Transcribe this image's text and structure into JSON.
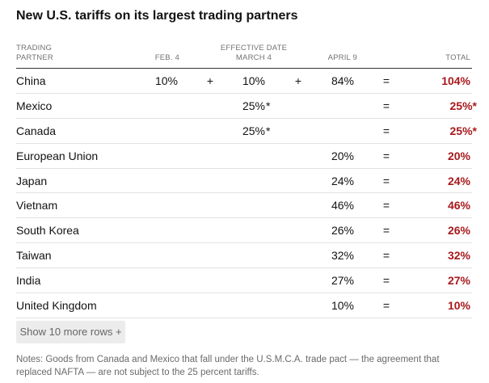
{
  "title": "New U.S. tariffs on its largest trading partners",
  "headers": {
    "partner": "TRADING PARTNER",
    "feb": "FEB. 4",
    "effective": "EFFECTIVE DATE",
    "march": "MARCH 4",
    "april": "APRIL 9",
    "total": "TOTAL"
  },
  "rows": [
    {
      "country": "China",
      "feb": "10%",
      "plus1": "+",
      "march": "10%",
      "march_note": "",
      "plus2": "+",
      "april": "84%",
      "eq": "=",
      "total": "104%",
      "total_note": ""
    },
    {
      "country": "Mexico",
      "feb": "",
      "plus1": "",
      "march": "25%",
      "march_note": "*",
      "plus2": "",
      "april": "",
      "eq": "=",
      "total": "25%",
      "total_note": "*"
    },
    {
      "country": "Canada",
      "feb": "",
      "plus1": "",
      "march": "25%",
      "march_note": "*",
      "plus2": "",
      "april": "",
      "eq": "=",
      "total": "25%",
      "total_note": "*"
    },
    {
      "country": "European Union",
      "feb": "",
      "plus1": "",
      "march": "",
      "march_note": "",
      "plus2": "",
      "april": "20%",
      "eq": "=",
      "total": "20%",
      "total_note": ""
    },
    {
      "country": "Japan",
      "feb": "",
      "plus1": "",
      "march": "",
      "march_note": "",
      "plus2": "",
      "april": "24%",
      "eq": "=",
      "total": "24%",
      "total_note": ""
    },
    {
      "country": "Vietnam",
      "feb": "",
      "plus1": "",
      "march": "",
      "march_note": "",
      "plus2": "",
      "april": "46%",
      "eq": "=",
      "total": "46%",
      "total_note": ""
    },
    {
      "country": "South Korea",
      "feb": "",
      "plus1": "",
      "march": "",
      "march_note": "",
      "plus2": "",
      "april": "26%",
      "eq": "=",
      "total": "26%",
      "total_note": ""
    },
    {
      "country": "Taiwan",
      "feb": "",
      "plus1": "",
      "march": "",
      "march_note": "",
      "plus2": "",
      "april": "32%",
      "eq": "=",
      "total": "32%",
      "total_note": ""
    },
    {
      "country": "India",
      "feb": "",
      "plus1": "",
      "march": "",
      "march_note": "",
      "plus2": "",
      "april": "27%",
      "eq": "=",
      "total": "27%",
      "total_note": ""
    },
    {
      "country": "United Kingdom",
      "feb": "",
      "plus1": "",
      "march": "",
      "march_note": "",
      "plus2": "",
      "april": "10%",
      "eq": "=",
      "total": "10%",
      "total_note": ""
    }
  ],
  "show_more_label": "Show 10 more rows +",
  "notes": "Notes: Goods from Canada and Mexico that fall under the U.S.M.C.A. trade pact — the agreement that replaced NAFTA — are not subject to the 25 percent tariffs.",
  "colors": {
    "total": "#a8191c",
    "rule": "#333333",
    "divider": "#e2e2e2"
  }
}
